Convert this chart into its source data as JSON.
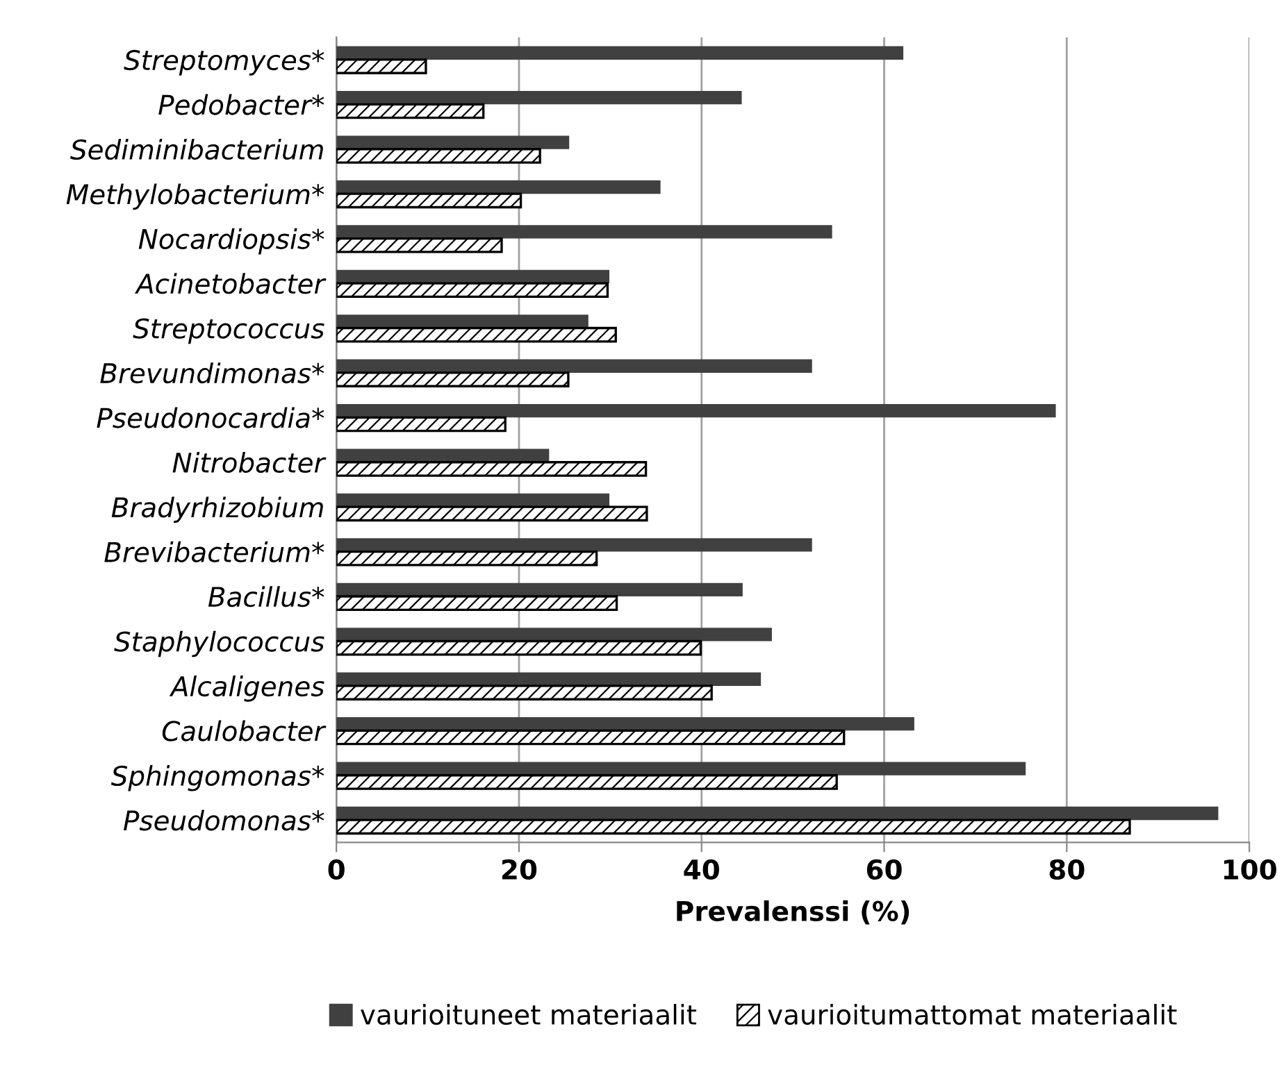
{
  "chart_data": {
    "type": "bar",
    "orientation": "horizontal",
    "categories": [
      "Streptomyces*",
      "Pedobacter*",
      "Sediminibacterium",
      "Methylobacterium*",
      "Nocardiopsis*",
      "Acinetobacter",
      "Streptococcus",
      "Brevundimonas*",
      "Pseudonocardia*",
      "Nitrobacter",
      "Bradyrhizobium",
      "Brevibacterium*",
      "Bacillus*",
      "Staphylococcus",
      "Alcaligenes",
      "Caulobacter",
      "Sphingomonas*",
      "Pseudomonas*"
    ],
    "series": [
      {
        "name": "vaurioituneet materiaalit",
        "color": "#404040",
        "values": [
          62.1,
          44.4,
          25.5,
          35.5,
          54.3,
          29.9,
          27.6,
          52.1,
          78.8,
          23.3,
          29.9,
          52.1,
          44.5,
          47.7,
          46.5,
          63.3,
          75.5,
          96.6
        ]
      },
      {
        "name": "vaurioitumattomat materiaalit",
        "color": "#000000",
        "values": [
          9.8,
          16.1,
          22.3,
          20.2,
          18.1,
          29.7,
          30.6,
          25.4,
          18.5,
          33.9,
          34.0,
          28.5,
          30.7,
          39.9,
          41.1,
          55.6,
          54.8,
          86.9
        ]
      }
    ],
    "xlabel": "Prevalenssi (%)",
    "xlim": [
      0,
      100
    ],
    "xticks": [
      0,
      20,
      40,
      60,
      80,
      100
    ],
    "grid": "x",
    "legend": "bottom"
  }
}
